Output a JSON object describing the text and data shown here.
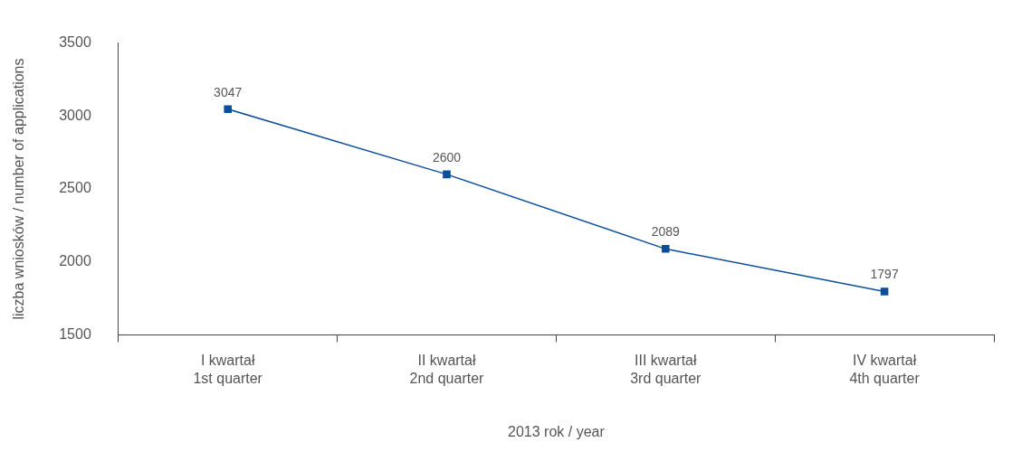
{
  "chart_data": {
    "type": "line",
    "xlabel": "2013 rok / year",
    "ylabel": "liczba wniosków / number of applications",
    "categories": [
      "I kwartał\n1st quarter",
      "II kwartał\n2nd quarter",
      "III kwartał\n3rd quarter",
      "IV kwartał\n4th quarter"
    ],
    "series": [
      {
        "color": "#0d4e9c",
        "values": [
          3047,
          2600,
          2089,
          1797
        ]
      }
    ],
    "ylim": [
      1500,
      3500
    ],
    "yticks": [
      1500,
      2000,
      2500,
      3000,
      3500
    ],
    "grid": false,
    "legend": false,
    "marker": "square",
    "line_style": "solid",
    "data_labels": true
  }
}
